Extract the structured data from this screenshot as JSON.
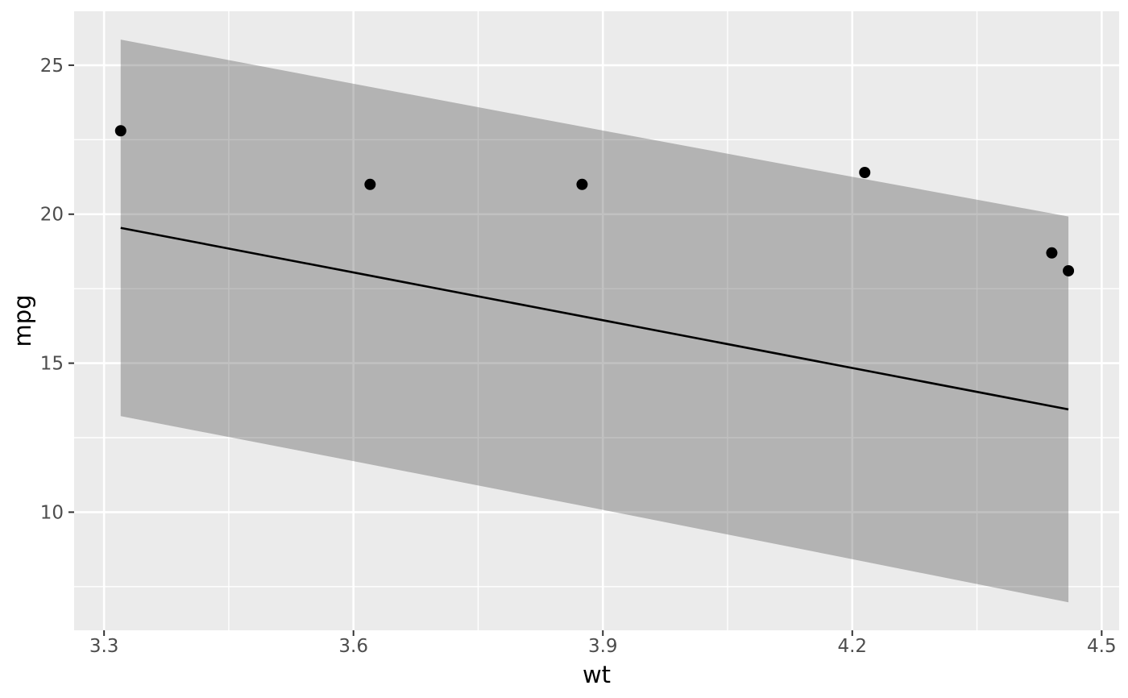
{
  "chart_data": {
    "type": "scatter",
    "title": "",
    "xlabel": "wt",
    "ylabel": "mpg",
    "xlim": [
      3.264,
      4.521
    ],
    "ylim": [
      6.035,
      26.81
    ],
    "grid": true,
    "legend": false,
    "x_major_ticks": [
      {
        "value": 3.3,
        "label": "3.3"
      },
      {
        "value": 3.6,
        "label": "3.6"
      },
      {
        "value": 3.9,
        "label": "3.9"
      },
      {
        "value": 4.2,
        "label": "4.2"
      },
      {
        "value": 4.5,
        "label": "4.5"
      }
    ],
    "y_major_ticks": [
      {
        "value": 10,
        "label": "10"
      },
      {
        "value": 15,
        "label": "15"
      },
      {
        "value": 20,
        "label": "20"
      },
      {
        "value": 25,
        "label": "25"
      }
    ],
    "x_minor_ticks": [
      3.45,
      3.75,
      4.05,
      4.35
    ],
    "y_minor_ticks": [
      7.5,
      12.5,
      17.5,
      22.5
    ],
    "points": [
      {
        "x": 3.32,
        "y": 22.8
      },
      {
        "x": 3.62,
        "y": 21.0
      },
      {
        "x": 3.875,
        "y": 21.0
      },
      {
        "x": 4.215,
        "y": 21.4
      },
      {
        "x": 4.44,
        "y": 18.7
      },
      {
        "x": 4.46,
        "y": 18.1
      }
    ],
    "fit_line": {
      "x": [
        3.32,
        4.46
      ],
      "y": [
        19.541,
        13.449
      ]
    },
    "ribbon": {
      "x": [
        3.32,
        3.605,
        3.89,
        4.175,
        4.46
      ],
      "upper": [
        25.86,
        24.351,
        22.859,
        21.383,
        19.923
      ],
      "lower": [
        13.223,
        11.686,
        10.132,
        8.561,
        6.974
      ]
    },
    "colors": {
      "panel_background": "#EBEBEB",
      "gridline": "#FFFFFF",
      "ribbon_fill": "#333333",
      "ribbon_opacity": 0.3,
      "fit_line_color": "#000000",
      "point_color": "#000000",
      "tick_mark_color": "#333333",
      "tick_label_color": "#4D4D4D",
      "axis_title_color": "#000000"
    }
  }
}
